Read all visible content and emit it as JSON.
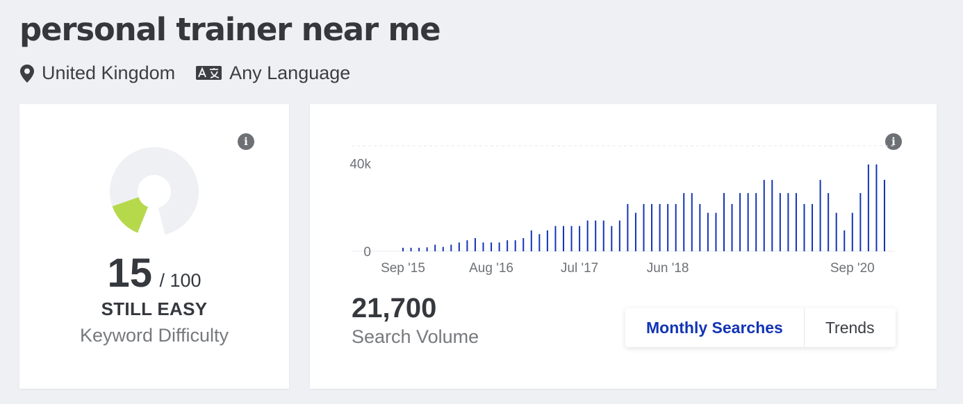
{
  "keyword": {
    "title": "personal trainer near me"
  },
  "filters": {
    "location": "United Kingdom",
    "language": "Any Language"
  },
  "difficulty": {
    "score": "15",
    "max": "/ 100",
    "verdict": "STILL EASY",
    "label": "Keyword Difficulty",
    "score_fraction": 0.15,
    "accent_color": "#b6d94c"
  },
  "volume": {
    "value": "21,700",
    "label": "Search Volume",
    "tabs": {
      "monthly": "Monthly Searches",
      "trends": "Trends"
    },
    "active_tab": "monthly",
    "accent_color": "#1234b4"
  },
  "chart_data": {
    "type": "bar",
    "x_tick_labels": [
      "Sep '15",
      "Aug '16",
      "Jul '17",
      "Jun '18",
      "Sep '20"
    ],
    "y_tick_labels": [
      "0",
      "40k"
    ],
    "ylim": [
      0,
      48000
    ],
    "grid": true,
    "values": [
      1600,
      1600,
      1600,
      1800,
      3000,
      2000,
      3000,
      4000,
      5000,
      6000,
      4000,
      4000,
      4000,
      5000,
      5000,
      6000,
      9500,
      7800,
      9500,
      11500,
      11500,
      11500,
      11500,
      14000,
      14000,
      14000,
      11500,
      14000,
      21500,
      17500,
      21500,
      21500,
      21500,
      21500,
      21500,
      26500,
      26500,
      21500,
      17500,
      17500,
      26500,
      21500,
      26500,
      26500,
      26500,
      32500,
      32500,
      26500,
      26500,
      26500,
      21500,
      21500,
      32500,
      26500,
      17500,
      9500,
      17500,
      26500,
      39500,
      39500,
      32500
    ]
  }
}
